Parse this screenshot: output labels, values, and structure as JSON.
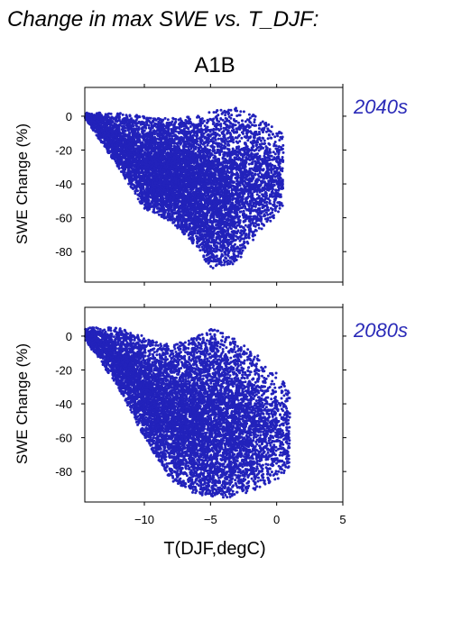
{
  "figure": {
    "title": "Change in max SWE vs. T_DJF:",
    "scenario": "A1B",
    "xlabel": "T(DJF,degC)"
  },
  "point_color": "#2222bb",
  "period_color": "#2a2ab8",
  "chart_data": [
    {
      "type": "scatter",
      "panel_label": "2040s",
      "xlabel": "",
      "ylabel": "SWE Change (%)",
      "xlim": [
        -14.5,
        5
      ],
      "ylim": [
        -98,
        17
      ],
      "xticks": [
        -10,
        -5,
        0,
        5
      ],
      "yticks": [
        0,
        -20,
        -40,
        -60,
        -80
      ],
      "show_x_tick_labels": false,
      "grid": false,
      "series": [
        {
          "cloud": {
            "ridge": [
              [
                -14.5,
                2
              ],
              [
                -12,
                2
              ],
              [
                -10,
                0
              ],
              [
                -8,
                -1
              ],
              [
                -6,
                0
              ],
              [
                -4.5,
                4
              ],
              [
                -3,
                5
              ],
              [
                -1.5,
                0
              ],
              [
                0.5,
                -10
              ]
            ],
            "lower_envelope": [
              [
                -14.5,
                -1
              ],
              [
                -12,
                -30
              ],
              [
                -10,
                -55
              ],
              [
                -8,
                -62
              ],
              [
                -6,
                -78
              ],
              [
                -5,
                -90
              ],
              [
                -3,
                -87
              ],
              [
                -1.5,
                -70
              ],
              [
                0.5,
                -55
              ]
            ],
            "peak_density_x": -6,
            "peak_density_y": -30,
            "approx_point_count": 9000
          }
        }
      ]
    },
    {
      "type": "scatter",
      "panel_label": "2080s",
      "xlabel": "T(DJF,degC)",
      "ylabel": "SWE Change (%)",
      "xlim": [
        -14.5,
        5
      ],
      "ylim": [
        -98,
        17
      ],
      "xticks": [
        -10,
        -5,
        0,
        5
      ],
      "yticks": [
        0,
        -20,
        -40,
        -60,
        -80
      ],
      "show_x_tick_labels": true,
      "grid": false,
      "series": [
        {
          "cloud": {
            "ridge": [
              [
                -14.5,
                5
              ],
              [
                -12,
                5
              ],
              [
                -10,
                0
              ],
              [
                -8,
                -5
              ],
              [
                -6,
                0
              ],
              [
                -5,
                5
              ],
              [
                -3,
                0
              ],
              [
                -1.5,
                -10
              ],
              [
                1,
                -30
              ]
            ],
            "lower_envelope": [
              [
                -14.5,
                -2
              ],
              [
                -12,
                -30
              ],
              [
                -10,
                -60
              ],
              [
                -8,
                -85
              ],
              [
                -6,
                -94
              ],
              [
                -4,
                -96
              ],
              [
                -2,
                -92
              ],
              [
                0,
                -85
              ],
              [
                1,
                -80
              ]
            ],
            "peak_density_x": -7,
            "peak_density_y": -50,
            "approx_point_count": 9000
          }
        }
      ]
    }
  ]
}
